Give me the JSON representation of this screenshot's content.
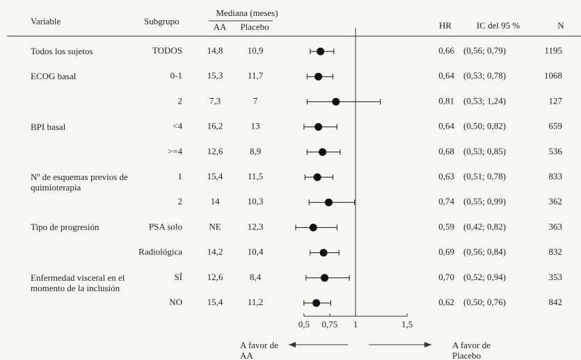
{
  "chart_data": {
    "type": "forest",
    "headers": {
      "variable": "Variable",
      "subgroup": "Subgrupo",
      "median": "Mediana (meses)",
      "aa": "AA",
      "placebo": "Placebo",
      "hr": "HR",
      "ci": "IC del 95 %",
      "n": "N"
    },
    "rows": [
      {
        "variable": "Todos los sujetos",
        "subgroup": "TODOS",
        "aa": "14,8",
        "placebo": "10,9",
        "hr": 0.66,
        "hr_label": "0,66",
        "ci": [
          0.56,
          0.79
        ],
        "ci_label": "(0,56; 0,79)",
        "n": 1195
      },
      {
        "variable": "ECOG basal",
        "subgroup": "0-1",
        "aa": "15,3",
        "placebo": "11,7",
        "hr": 0.64,
        "hr_label": "0,64",
        "ci": [
          0.53,
          0.78
        ],
        "ci_label": "(0,53; 0,78)",
        "n": 1068
      },
      {
        "subgroup": "2",
        "aa": "7,3",
        "placebo": "7",
        "hr": 0.81,
        "hr_label": "0,81",
        "ci": [
          0.53,
          1.24
        ],
        "ci_label": "(0,53; 1,24)",
        "n": 127
      },
      {
        "variable": "BPI basal",
        "subgroup": "<4",
        "aa": "16,2",
        "placebo": "13",
        "hr": 0.64,
        "hr_label": "0,64",
        "ci": [
          0.5,
          0.82
        ],
        "ci_label": "(0,50; 0,82)",
        "n": 659
      },
      {
        "subgroup": ">=4",
        "aa": "12,6",
        "placebo": "8,9",
        "hr": 0.68,
        "hr_label": "0,68",
        "ci": [
          0.53,
          0.85
        ],
        "ci_label": "(0,53; 0,85)",
        "n": 536
      },
      {
        "variable": "Nº de esquemas previos de quimioterapia",
        "subgroup": "1",
        "aa": "15,4",
        "placebo": "11,5",
        "hr": 0.63,
        "hr_label": "0,63",
        "ci": [
          0.51,
          0.78
        ],
        "ci_label": "(0,51; 0,78)",
        "n": 833
      },
      {
        "subgroup": "2",
        "aa": "14",
        "placebo": "10,3",
        "hr": 0.74,
        "hr_label": "0,74",
        "ci": [
          0.55,
          0.99
        ],
        "ci_label": "(0,55; 0,99)",
        "n": 362
      },
      {
        "variable": "Tipo de progresión",
        "subgroup": "PSA solo",
        "aa": "NE",
        "placebo": "12,3",
        "hr": 0.59,
        "hr_label": "0,59",
        "ci": [
          0.42,
          0.82
        ],
        "ci_label": "(0,42; 0,82)",
        "n": 363
      },
      {
        "subgroup": "Radiológica",
        "aa": "14,2",
        "placebo": "10,4",
        "hr": 0.69,
        "hr_label": "0,69",
        "ci": [
          0.56,
          0.84
        ],
        "ci_label": "(0,56; 0,84)",
        "n": 832
      },
      {
        "variable": "Enfermedad visceral en el momento de la inclusión",
        "subgroup": "SÍ",
        "aa": "12,6",
        "placebo": "8,4",
        "hr": 0.7,
        "hr_label": "0,70",
        "ci": [
          0.52,
          0.94
        ],
        "ci_label": "(0,52; 0,94)",
        "n": 353
      },
      {
        "subgroup": "NO",
        "aa": "15,4",
        "placebo": "11,2",
        "hr": 0.62,
        "hr_label": "0,62",
        "ci": [
          0.5,
          0.76
        ],
        "ci_label": "(0,50; 0,76)",
        "n": 842
      }
    ],
    "xlim": [
      0.4,
      1.6
    ],
    "xticks": [
      {
        "value": 0.5,
        "label": "0,5"
      },
      {
        "value": 0.75,
        "label": "0,75"
      },
      1,
      {
        "value": 1.5,
        "label": "1,5"
      }
    ],
    "reference_line": 1,
    "favor_left": "A favor de AA",
    "favor_right": "A favor de Placebo",
    "color": "#111111"
  }
}
